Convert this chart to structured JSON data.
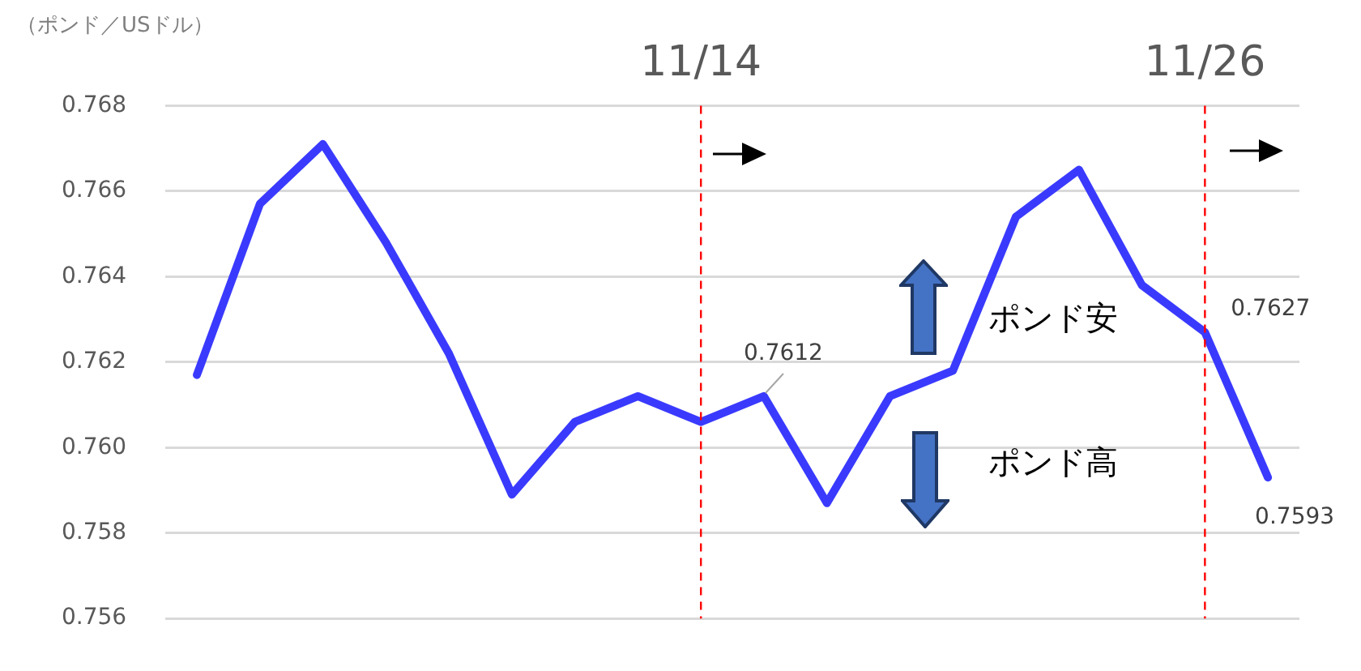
{
  "chart_data": {
    "type": "line",
    "ylabel": "（ポンド／USドル）",
    "categories": [
      null,
      null,
      null,
      null,
      null,
      null,
      null,
      null,
      "11/14",
      null,
      null,
      null,
      null,
      null,
      null,
      null,
      "11/26",
      null
    ],
    "series": [
      {
        "color": "#3a3aff",
        "values": [
          0.7617,
          0.7657,
          0.7671,
          0.7648,
          0.7622,
          0.7589,
          0.7606,
          0.7612,
          0.7606,
          0.7612,
          0.7587,
          0.7612,
          0.7618,
          0.7654,
          0.7665,
          0.7638,
          0.7627,
          0.7593
        ],
        "value_labels": [
          null,
          null,
          null,
          null,
          null,
          null,
          null,
          null,
          null,
          "0.7612",
          null,
          null,
          null,
          null,
          null,
          null,
          "0.7627",
          "0.7593"
        ]
      }
    ],
    "ylim": [
      0.756,
      0.768
    ],
    "yticks": [
      0.756,
      0.758,
      {
        "value": 0.76,
        "label": "0.760"
      },
      0.762,
      0.764,
      0.766,
      0.768
    ],
    "grid": "y",
    "legend": false,
    "marker": "none",
    "line_style": "solid",
    "ref_lines": [
      {
        "axis": "x",
        "value": "11/14",
        "color": "#ff0000",
        "line_style": "dashed"
      },
      {
        "axis": "x",
        "value": "11/26",
        "color": "#ff0000",
        "line_style": "dashed"
      }
    ],
    "annotations": [
      "ポンド安",
      "ポンド高"
    ]
  }
}
